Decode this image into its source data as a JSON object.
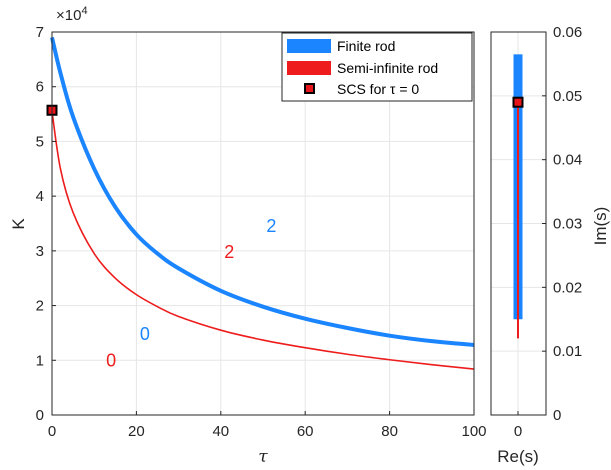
{
  "chart_data": [
    {
      "type": "line",
      "xlabel": "τ",
      "ylabel": "K",
      "xlim": [
        0,
        100
      ],
      "ylim": [
        0,
        70000
      ],
      "y_exponent_label": "×10",
      "y_exponent_power": "4",
      "x_ticks": [
        "0",
        "20",
        "40",
        "60",
        "80",
        "100"
      ],
      "y_ticks": [
        "0",
        "1",
        "2",
        "3",
        "4",
        "5",
        "6",
        "7"
      ],
      "grid": true,
      "legend_position": "top-right",
      "legend": [
        {
          "label": "Finite rod",
          "kind": "band",
          "color": "#1a85ff"
        },
        {
          "label": "Semi-infinite rod",
          "kind": "band",
          "color": "#ee1c1c"
        },
        {
          "label": "SCS for τ = 0",
          "kind": "marker",
          "color": "#e8161a"
        }
      ],
      "series": [
        {
          "name": "Finite rod",
          "color": "#1a85ff",
          "x": [
            0,
            2,
            5,
            10,
            15,
            20,
            25,
            30,
            40,
            50,
            60,
            70,
            80,
            90,
            100
          ],
          "y": [
            69000,
            62500,
            54500,
            45000,
            38000,
            33000,
            29500,
            26800,
            22700,
            19800,
            17600,
            15900,
            14500,
            13500,
            12800
          ]
        },
        {
          "name": "Semi-infinite rod",
          "color": "#ee1c1c",
          "x": [
            0,
            2,
            5,
            10,
            15,
            20,
            25,
            30,
            40,
            50,
            60,
            70,
            80,
            90,
            100
          ],
          "y": [
            55500,
            45000,
            37000,
            29500,
            25000,
            22000,
            19800,
            18000,
            15500,
            13700,
            12300,
            11100,
            10100,
            9200,
            8400
          ]
        }
      ],
      "marker": {
        "label": "SCS for τ = 0",
        "x": 0,
        "y": 55700
      },
      "annotations": [
        {
          "text": "2",
          "color": "#1a85ff",
          "x": 52,
          "y": 34500
        },
        {
          "text": "2",
          "color": "#ee1c1c",
          "x": 42,
          "y": 29800
        },
        {
          "text": "0",
          "color": "#1a85ff",
          "x": 22,
          "y": 14800
        },
        {
          "text": "0",
          "color": "#ee1c1c",
          "x": 14,
          "y": 10000
        }
      ]
    },
    {
      "type": "line",
      "xlabel": "Re(s)",
      "ylabel": "Im(s)",
      "x_ticks": [
        "0"
      ],
      "y_ticks": [
        "0",
        "0.01",
        "0.02",
        "0.03",
        "0.04",
        "0.05",
        "0.06"
      ],
      "ylim": [
        0,
        0.06
      ],
      "grid": true,
      "series": [
        {
          "name": "Finite rod",
          "color": "#1a85ff",
          "re": 0,
          "im_range": [
            0.015,
            0.0565
          ]
        },
        {
          "name": "Semi-infinite rod",
          "color": "#ee1c1c",
          "re": 0,
          "im_range": [
            0.012,
            0.049
          ]
        }
      ],
      "marker": {
        "re": 0,
        "im": 0.049
      }
    }
  ]
}
